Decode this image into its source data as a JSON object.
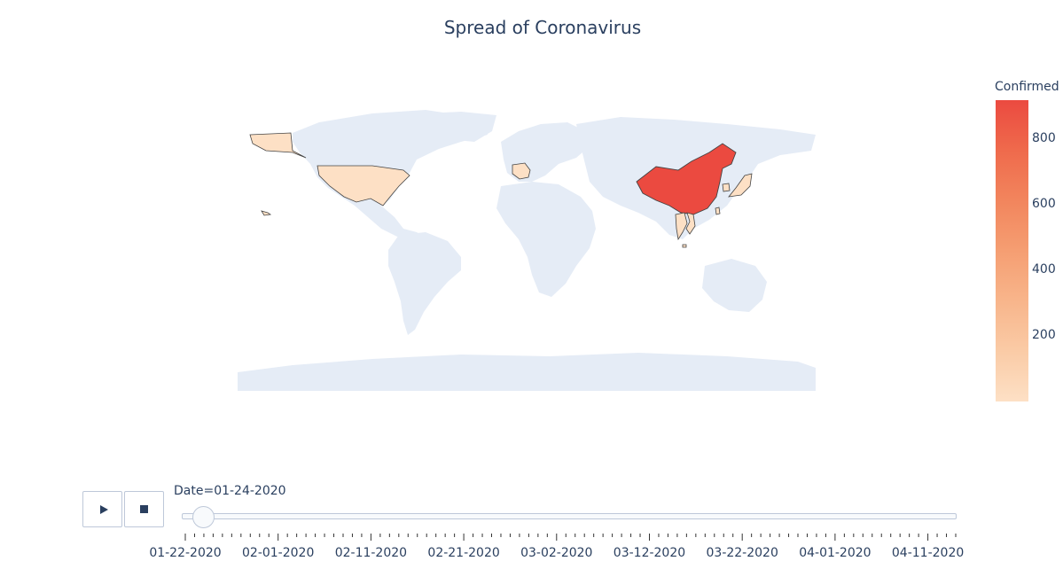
{
  "title": "Spread of Coronavirus",
  "colors": {
    "land": "#e5ecf6",
    "border": "#444444",
    "scale": [
      "#fde0c5",
      "#facba6",
      "#f8b58b",
      "#f59e72",
      "#f2855d",
      "#ef6a4c",
      "#eb4a40"
    ]
  },
  "legend": {
    "title": "Confirmed",
    "min": 0,
    "max": 920,
    "ticks": [
      {
        "label": "200",
        "value": 200
      },
      {
        "label": "400",
        "value": 400
      },
      {
        "label": "600",
        "value": 600
      },
      {
        "label": "800",
        "value": 800
      }
    ]
  },
  "map_data": {
    "projection": "natural earth",
    "countries": [
      {
        "name": "China",
        "confirmed": 917
      },
      {
        "name": "US",
        "confirmed": 2
      },
      {
        "name": "France",
        "confirmed": 3
      },
      {
        "name": "Japan",
        "confirmed": 2
      },
      {
        "name": "Taiwan",
        "confirmed": 3
      },
      {
        "name": "South Korea",
        "confirmed": 2
      },
      {
        "name": "Thailand",
        "confirmed": 5
      },
      {
        "name": "Vietnam",
        "confirmed": 2
      },
      {
        "name": "Singapore",
        "confirmed": 3
      }
    ]
  },
  "animation": {
    "play_icon": "play-icon",
    "stop_icon": "stop-icon",
    "current_value": "Date=01-24-2020",
    "frame_count": 84,
    "current_frame": 2,
    "tick_labels": [
      "01-22-2020",
      "02-01-2020",
      "02-11-2020",
      "02-21-2020",
      "03-02-2020",
      "03-12-2020",
      "03-22-2020",
      "04-01-2020",
      "04-11-2020"
    ]
  }
}
